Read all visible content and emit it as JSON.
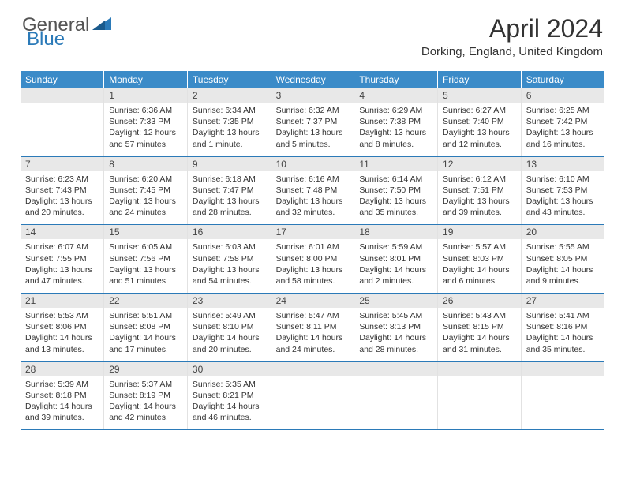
{
  "logo": {
    "text1": "General",
    "text2": "Blue"
  },
  "title": "April 2024",
  "location": "Dorking, England, United Kingdom",
  "colors": {
    "header_bg": "#3b8bc8",
    "header_text": "#ffffff",
    "daynum_bg": "#e8e8e8",
    "row_divider": "#2b7ab8",
    "cell_divider": "#e2e2e2",
    "logo_gray": "#555555",
    "logo_blue": "#2b7ab8"
  },
  "weekdays": [
    "Sunday",
    "Monday",
    "Tuesday",
    "Wednesday",
    "Thursday",
    "Friday",
    "Saturday"
  ],
  "weeks": [
    [
      {
        "n": "",
        "lines": []
      },
      {
        "n": "1",
        "lines": [
          "Sunrise: 6:36 AM",
          "Sunset: 7:33 PM",
          "Daylight: 12 hours and 57 minutes."
        ]
      },
      {
        "n": "2",
        "lines": [
          "Sunrise: 6:34 AM",
          "Sunset: 7:35 PM",
          "Daylight: 13 hours and 1 minute."
        ]
      },
      {
        "n": "3",
        "lines": [
          "Sunrise: 6:32 AM",
          "Sunset: 7:37 PM",
          "Daylight: 13 hours and 5 minutes."
        ]
      },
      {
        "n": "4",
        "lines": [
          "Sunrise: 6:29 AM",
          "Sunset: 7:38 PM",
          "Daylight: 13 hours and 8 minutes."
        ]
      },
      {
        "n": "5",
        "lines": [
          "Sunrise: 6:27 AM",
          "Sunset: 7:40 PM",
          "Daylight: 13 hours and 12 minutes."
        ]
      },
      {
        "n": "6",
        "lines": [
          "Sunrise: 6:25 AM",
          "Sunset: 7:42 PM",
          "Daylight: 13 hours and 16 minutes."
        ]
      }
    ],
    [
      {
        "n": "7",
        "lines": [
          "Sunrise: 6:23 AM",
          "Sunset: 7:43 PM",
          "Daylight: 13 hours and 20 minutes."
        ]
      },
      {
        "n": "8",
        "lines": [
          "Sunrise: 6:20 AM",
          "Sunset: 7:45 PM",
          "Daylight: 13 hours and 24 minutes."
        ]
      },
      {
        "n": "9",
        "lines": [
          "Sunrise: 6:18 AM",
          "Sunset: 7:47 PM",
          "Daylight: 13 hours and 28 minutes."
        ]
      },
      {
        "n": "10",
        "lines": [
          "Sunrise: 6:16 AM",
          "Sunset: 7:48 PM",
          "Daylight: 13 hours and 32 minutes."
        ]
      },
      {
        "n": "11",
        "lines": [
          "Sunrise: 6:14 AM",
          "Sunset: 7:50 PM",
          "Daylight: 13 hours and 35 minutes."
        ]
      },
      {
        "n": "12",
        "lines": [
          "Sunrise: 6:12 AM",
          "Sunset: 7:51 PM",
          "Daylight: 13 hours and 39 minutes."
        ]
      },
      {
        "n": "13",
        "lines": [
          "Sunrise: 6:10 AM",
          "Sunset: 7:53 PM",
          "Daylight: 13 hours and 43 minutes."
        ]
      }
    ],
    [
      {
        "n": "14",
        "lines": [
          "Sunrise: 6:07 AM",
          "Sunset: 7:55 PM",
          "Daylight: 13 hours and 47 minutes."
        ]
      },
      {
        "n": "15",
        "lines": [
          "Sunrise: 6:05 AM",
          "Sunset: 7:56 PM",
          "Daylight: 13 hours and 51 minutes."
        ]
      },
      {
        "n": "16",
        "lines": [
          "Sunrise: 6:03 AM",
          "Sunset: 7:58 PM",
          "Daylight: 13 hours and 54 minutes."
        ]
      },
      {
        "n": "17",
        "lines": [
          "Sunrise: 6:01 AM",
          "Sunset: 8:00 PM",
          "Daylight: 13 hours and 58 minutes."
        ]
      },
      {
        "n": "18",
        "lines": [
          "Sunrise: 5:59 AM",
          "Sunset: 8:01 PM",
          "Daylight: 14 hours and 2 minutes."
        ]
      },
      {
        "n": "19",
        "lines": [
          "Sunrise: 5:57 AM",
          "Sunset: 8:03 PM",
          "Daylight: 14 hours and 6 minutes."
        ]
      },
      {
        "n": "20",
        "lines": [
          "Sunrise: 5:55 AM",
          "Sunset: 8:05 PM",
          "Daylight: 14 hours and 9 minutes."
        ]
      }
    ],
    [
      {
        "n": "21",
        "lines": [
          "Sunrise: 5:53 AM",
          "Sunset: 8:06 PM",
          "Daylight: 14 hours and 13 minutes."
        ]
      },
      {
        "n": "22",
        "lines": [
          "Sunrise: 5:51 AM",
          "Sunset: 8:08 PM",
          "Daylight: 14 hours and 17 minutes."
        ]
      },
      {
        "n": "23",
        "lines": [
          "Sunrise: 5:49 AM",
          "Sunset: 8:10 PM",
          "Daylight: 14 hours and 20 minutes."
        ]
      },
      {
        "n": "24",
        "lines": [
          "Sunrise: 5:47 AM",
          "Sunset: 8:11 PM",
          "Daylight: 14 hours and 24 minutes."
        ]
      },
      {
        "n": "25",
        "lines": [
          "Sunrise: 5:45 AM",
          "Sunset: 8:13 PM",
          "Daylight: 14 hours and 28 minutes."
        ]
      },
      {
        "n": "26",
        "lines": [
          "Sunrise: 5:43 AM",
          "Sunset: 8:15 PM",
          "Daylight: 14 hours and 31 minutes."
        ]
      },
      {
        "n": "27",
        "lines": [
          "Sunrise: 5:41 AM",
          "Sunset: 8:16 PM",
          "Daylight: 14 hours and 35 minutes."
        ]
      }
    ],
    [
      {
        "n": "28",
        "lines": [
          "Sunrise: 5:39 AM",
          "Sunset: 8:18 PM",
          "Daylight: 14 hours and 39 minutes."
        ]
      },
      {
        "n": "29",
        "lines": [
          "Sunrise: 5:37 AM",
          "Sunset: 8:19 PM",
          "Daylight: 14 hours and 42 minutes."
        ]
      },
      {
        "n": "30",
        "lines": [
          "Sunrise: 5:35 AM",
          "Sunset: 8:21 PM",
          "Daylight: 14 hours and 46 minutes."
        ]
      },
      {
        "n": "",
        "lines": []
      },
      {
        "n": "",
        "lines": []
      },
      {
        "n": "",
        "lines": []
      },
      {
        "n": "",
        "lines": []
      }
    ]
  ]
}
